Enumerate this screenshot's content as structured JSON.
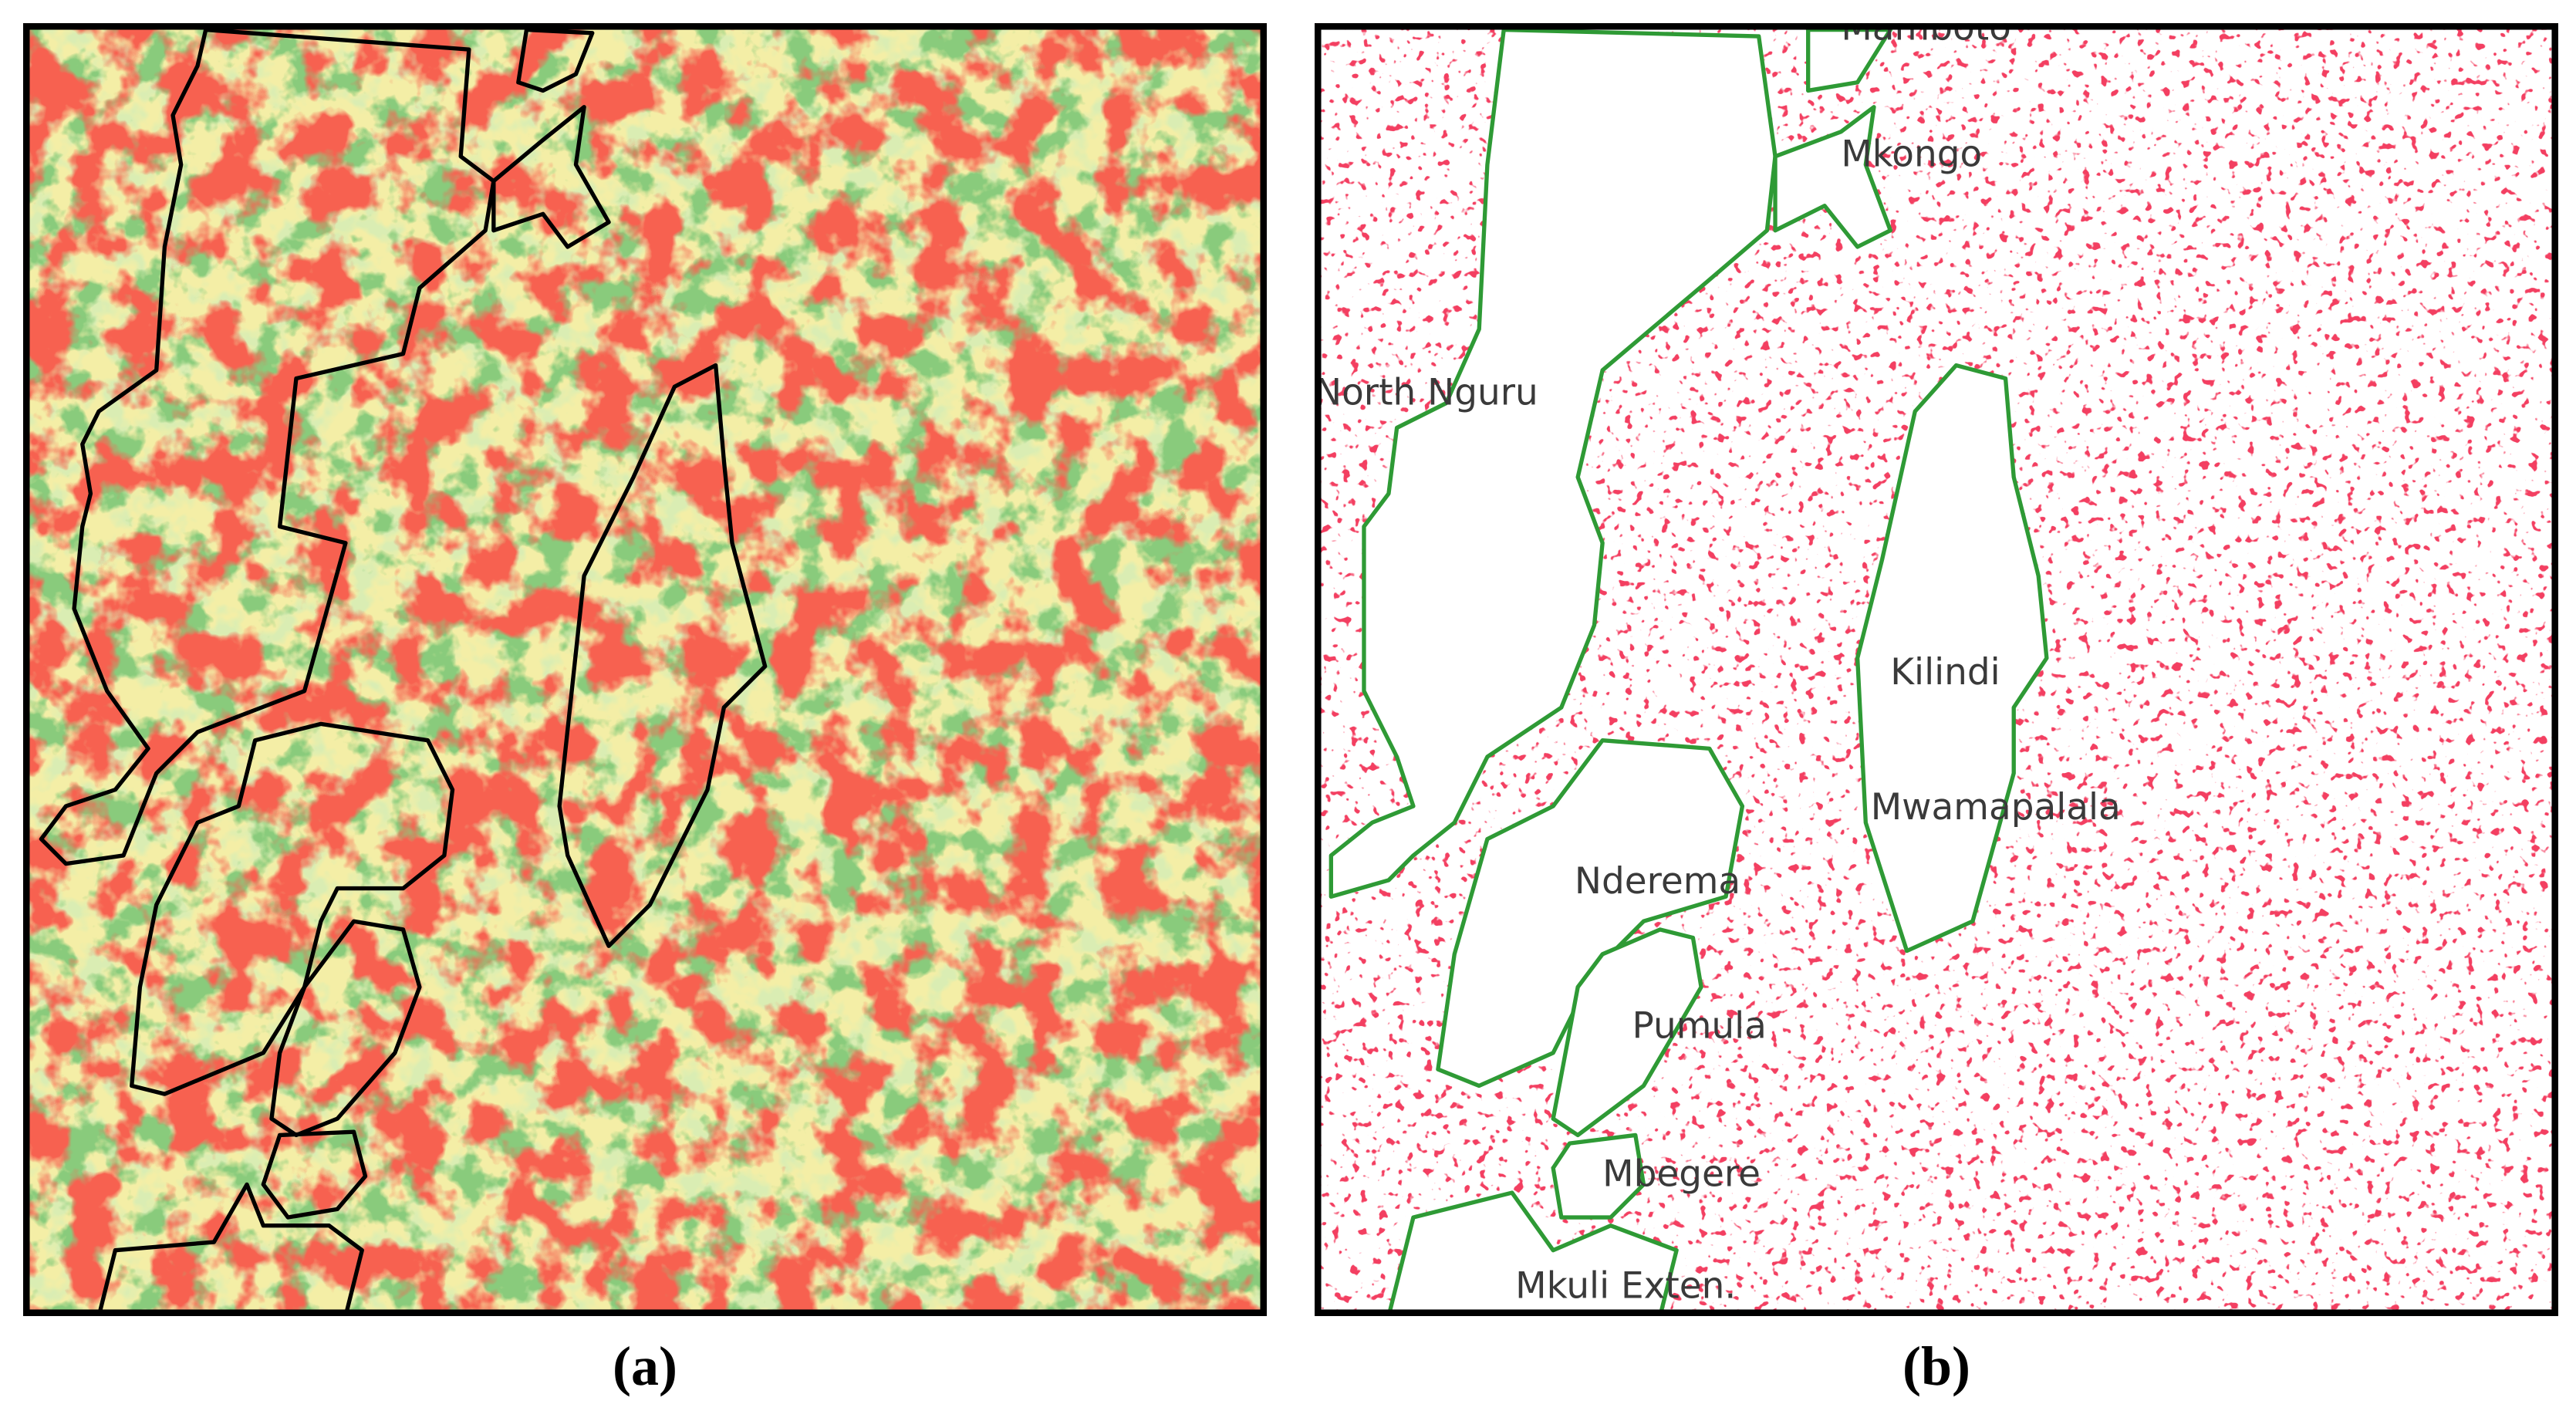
{
  "panels": [
    {
      "caption": "(a)"
    },
    {
      "caption": "(b)",
      "labels": [
        "Mamboto",
        "Mkongo",
        "North Nguru",
        "Kilindi",
        "Mwamapalala",
        "Nderema",
        "Pumula",
        "Mbegere",
        "Mkuli Exten."
      ]
    }
  ]
}
